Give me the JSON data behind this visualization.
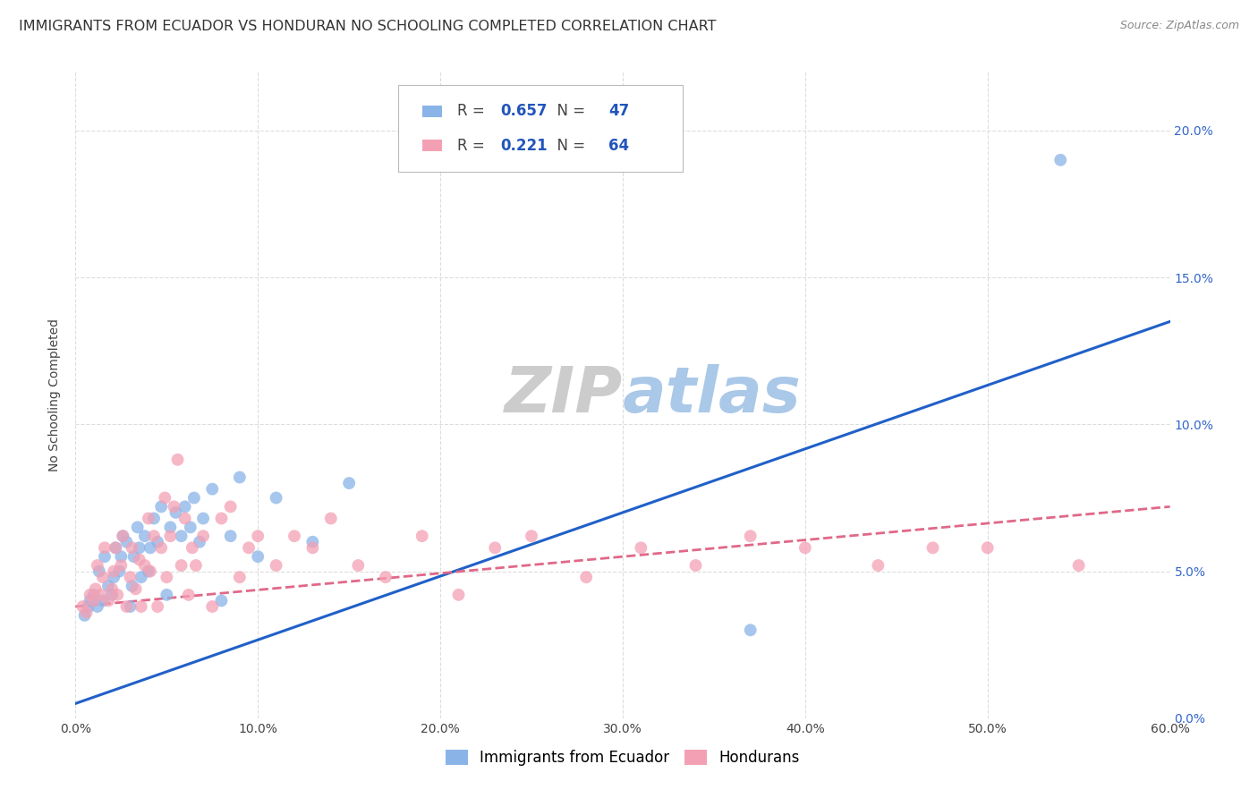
{
  "title": "IMMIGRANTS FROM ECUADOR VS HONDURAN NO SCHOOLING COMPLETED CORRELATION CHART",
  "source": "Source: ZipAtlas.com",
  "ylabel": "No Schooling Completed",
  "watermark_zip": "ZIP",
  "watermark_atlas": "atlas",
  "series1_label": "Immigrants from Ecuador",
  "series2_label": "Hondurans",
  "R1": 0.657,
  "N1": 47,
  "R2": 0.221,
  "N2": 64,
  "color1": "#8ab4e8",
  "color2": "#f4a0b4",
  "trendline1_color": "#2060c8",
  "trendline2_color": "#e06888",
  "xmin": 0.0,
  "xmax": 0.6,
  "ymin": 0.0,
  "ymax": 0.22,
  "xticks": [
    0.0,
    0.1,
    0.2,
    0.3,
    0.4,
    0.5,
    0.6
  ],
  "yticks": [
    0.0,
    0.05,
    0.1,
    0.15,
    0.2
  ],
  "scatter1_x": [
    0.005,
    0.007,
    0.008,
    0.01,
    0.012,
    0.013,
    0.015,
    0.016,
    0.018,
    0.02,
    0.021,
    0.022,
    0.024,
    0.025,
    0.026,
    0.028,
    0.03,
    0.031,
    0.032,
    0.034,
    0.035,
    0.036,
    0.038,
    0.04,
    0.041,
    0.043,
    0.045,
    0.047,
    0.05,
    0.052,
    0.055,
    0.058,
    0.06,
    0.063,
    0.065,
    0.068,
    0.07,
    0.075,
    0.08,
    0.085,
    0.09,
    0.1,
    0.11,
    0.13,
    0.15,
    0.37,
    0.54
  ],
  "scatter1_y": [
    0.035,
    0.038,
    0.04,
    0.042,
    0.038,
    0.05,
    0.04,
    0.055,
    0.045,
    0.042,
    0.048,
    0.058,
    0.05,
    0.055,
    0.062,
    0.06,
    0.038,
    0.045,
    0.055,
    0.065,
    0.058,
    0.048,
    0.062,
    0.05,
    0.058,
    0.068,
    0.06,
    0.072,
    0.042,
    0.065,
    0.07,
    0.062,
    0.072,
    0.065,
    0.075,
    0.06,
    0.068,
    0.078,
    0.04,
    0.062,
    0.082,
    0.055,
    0.075,
    0.06,
    0.08,
    0.03,
    0.19
  ],
  "scatter2_x": [
    0.004,
    0.006,
    0.008,
    0.01,
    0.011,
    0.012,
    0.014,
    0.015,
    0.016,
    0.018,
    0.02,
    0.021,
    0.022,
    0.023,
    0.025,
    0.026,
    0.028,
    0.03,
    0.031,
    0.033,
    0.035,
    0.036,
    0.038,
    0.04,
    0.041,
    0.043,
    0.045,
    0.047,
    0.049,
    0.05,
    0.052,
    0.054,
    0.056,
    0.058,
    0.06,
    0.062,
    0.064,
    0.066,
    0.07,
    0.075,
    0.08,
    0.085,
    0.09,
    0.095,
    0.1,
    0.11,
    0.12,
    0.13,
    0.14,
    0.155,
    0.17,
    0.19,
    0.21,
    0.23,
    0.25,
    0.28,
    0.31,
    0.34,
    0.37,
    0.4,
    0.44,
    0.47,
    0.5,
    0.55
  ],
  "scatter2_y": [
    0.038,
    0.036,
    0.042,
    0.04,
    0.044,
    0.052,
    0.042,
    0.048,
    0.058,
    0.04,
    0.044,
    0.05,
    0.058,
    0.042,
    0.052,
    0.062,
    0.038,
    0.048,
    0.058,
    0.044,
    0.054,
    0.038,
    0.052,
    0.068,
    0.05,
    0.062,
    0.038,
    0.058,
    0.075,
    0.048,
    0.062,
    0.072,
    0.088,
    0.052,
    0.068,
    0.042,
    0.058,
    0.052,
    0.062,
    0.038,
    0.068,
    0.072,
    0.048,
    0.058,
    0.062,
    0.052,
    0.062,
    0.058,
    0.068,
    0.052,
    0.048,
    0.062,
    0.042,
    0.058,
    0.062,
    0.048,
    0.058,
    0.052,
    0.062,
    0.058,
    0.052,
    0.058,
    0.058,
    0.052
  ],
  "trendline1_x": [
    0.0,
    0.6
  ],
  "trendline1_y": [
    0.005,
    0.135
  ],
  "trendline2_x": [
    0.0,
    0.6
  ],
  "trendline2_y": [
    0.038,
    0.072
  ],
  "background_color": "#ffffff",
  "grid_color": "#dddddd",
  "title_fontsize": 11.5,
  "axis_label_fontsize": 10,
  "tick_fontsize": 10,
  "legend_fontsize": 12,
  "watermark_fontsize_zip": 52,
  "watermark_fontsize_atlas": 52,
  "watermark_color_zip": "#cccccc",
  "watermark_color_atlas": "#aac8e8",
  "source_fontsize": 9,
  "right_tick_color": "#3366cc"
}
